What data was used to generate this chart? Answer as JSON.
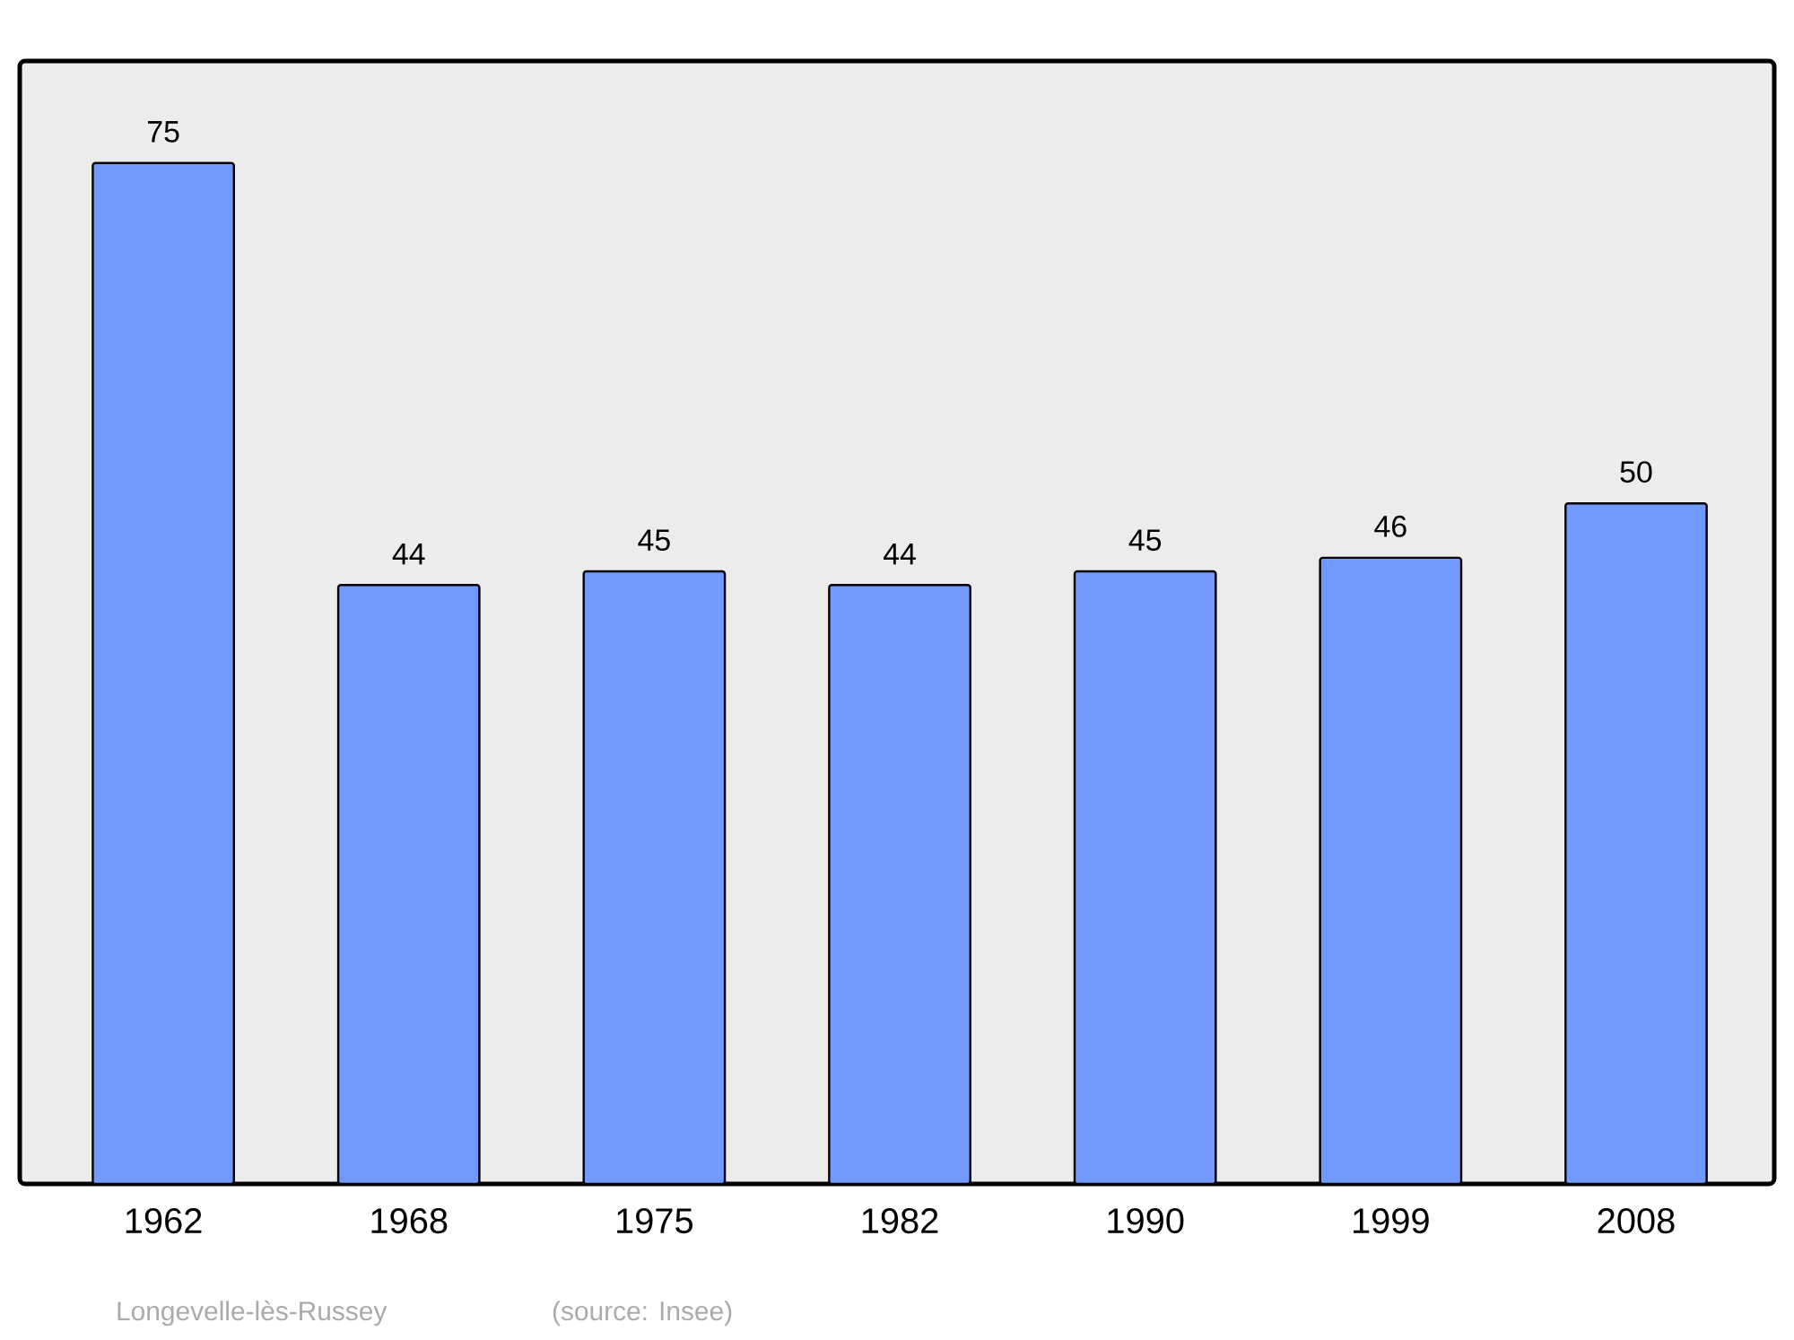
{
  "chart_data": {
    "type": "bar",
    "categories": [
      "1962",
      "1968",
      "1975",
      "1982",
      "1990",
      "1999",
      "2008"
    ],
    "values": [
      75,
      44,
      45,
      44,
      45,
      46,
      50
    ],
    "value_labels": [
      "75",
      "44",
      "45",
      "44",
      "45",
      "46",
      "50"
    ],
    "color": "#7299ff",
    "annotations": [
      "Longevelle-lès-Russey",
      "(source: Insee)"
    ]
  }
}
